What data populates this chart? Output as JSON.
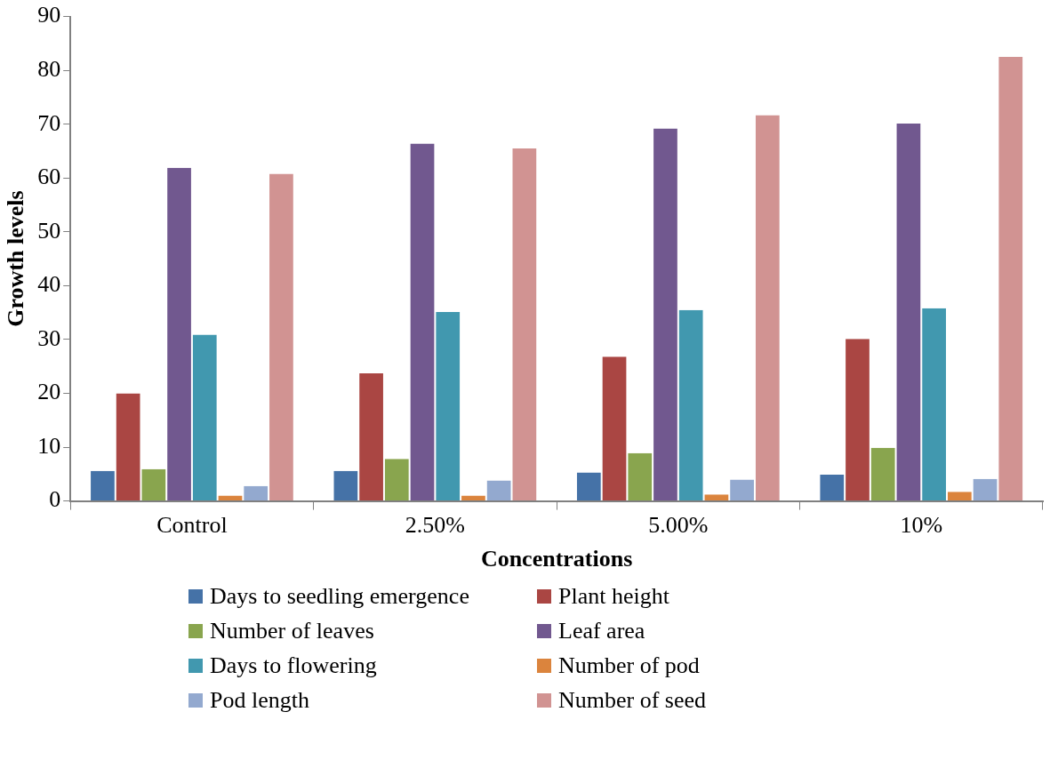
{
  "chart_data": {
    "type": "bar",
    "xlabel": "Concentrations",
    "ylabel": "Growth levels",
    "categories": [
      "Control",
      "2.50%",
      "5.00%",
      "10%"
    ],
    "series": [
      {
        "name": "Days to seedling emergence",
        "color": "#4572a7",
        "values": [
          5.6,
          5.6,
          5.3,
          4.9
        ]
      },
      {
        "name": "Plant height",
        "color": "#aa4643",
        "values": [
          20.0,
          23.7,
          26.8,
          30.1
        ]
      },
      {
        "name": "Number of leaves",
        "color": "#89a54e",
        "values": [
          5.9,
          7.8,
          8.9,
          9.9
        ]
      },
      {
        "name": "Leaf area",
        "color": "#71588f",
        "values": [
          61.9,
          66.4,
          69.2,
          70.1
        ]
      },
      {
        "name": "Days to flowering",
        "color": "#4198af",
        "values": [
          30.9,
          35.1,
          35.5,
          35.8
        ]
      },
      {
        "name": "Number of pod",
        "color": "#db843d",
        "values": [
          1.0,
          1.0,
          1.2,
          1.7
        ]
      },
      {
        "name": "Pod length",
        "color": "#93a9cf",
        "values": [
          2.8,
          3.8,
          4.0,
          4.1
        ]
      },
      {
        "name": "Number of seed",
        "color": "#d19392",
        "values": [
          60.8,
          65.5,
          71.7,
          82.5
        ]
      }
    ],
    "ylim": [
      0,
      90
    ],
    "yticks": [
      0,
      10,
      20,
      30,
      40,
      50,
      60,
      70,
      80,
      90
    ],
    "grid": false,
    "legend": "bottom"
  }
}
